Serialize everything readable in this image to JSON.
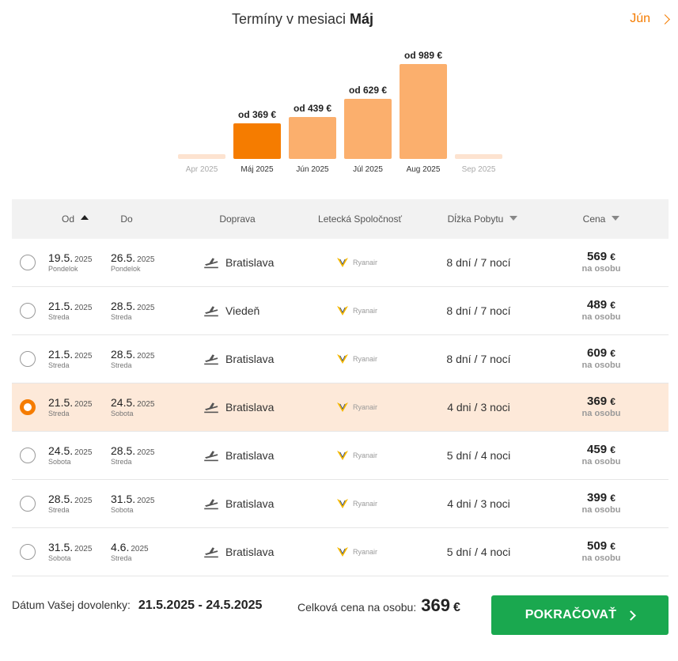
{
  "header": {
    "title_prefix": "Termíny v mesiaci",
    "title_month": "Máj",
    "next_month_label": "Jún"
  },
  "colors": {
    "accent": "#f57c00",
    "bar_selected": "#f57c00",
    "bar_other": "#fbaf6d",
    "bar_empty": "#fde3d0",
    "selected_row": "#fde9d9",
    "continue_button": "#1aa84f"
  },
  "chart_data": {
    "type": "bar",
    "categories": [
      "Apr 2025",
      "Máj 2025",
      "Jún 2025",
      "Júl 2025",
      "Aug 2025",
      "Sep 2025"
    ],
    "values": [
      null,
      369,
      439,
      629,
      989,
      null
    ],
    "labels": [
      "",
      "od 369 €",
      "od 439 €",
      "od 629 €",
      "od 989 €",
      ""
    ],
    "selected_category": "Máj 2025",
    "title": "",
    "xlabel": "",
    "ylabel": ""
  },
  "table": {
    "headers": {
      "from": "Od",
      "to": "Do",
      "transport": "Doprava",
      "airline": "Letecká Spoločnosť",
      "stay": "Dĺžka Pobytu",
      "price": "Cena"
    },
    "rows": [
      {
        "from_d": "19.5.",
        "from_y": "2025",
        "from_w": "Pondelok",
        "to_d": "26.5.",
        "to_y": "2025",
        "to_w": "Pondelok",
        "transport": "Bratislava",
        "airline": "Ryanair",
        "days": "8 dní",
        "nights": "7 nocí",
        "price": "569",
        "cur": "€",
        "per": "na osobu",
        "selected": false
      },
      {
        "from_d": "21.5.",
        "from_y": "2025",
        "from_w": "Streda",
        "to_d": "28.5.",
        "to_y": "2025",
        "to_w": "Streda",
        "transport": "Viedeň",
        "airline": "Ryanair",
        "days": "8 dní",
        "nights": "7 nocí",
        "price": "489",
        "cur": "€",
        "per": "na osobu",
        "selected": false
      },
      {
        "from_d": "21.5.",
        "from_y": "2025",
        "from_w": "Streda",
        "to_d": "28.5.",
        "to_y": "2025",
        "to_w": "Streda",
        "transport": "Bratislava",
        "airline": "Ryanair",
        "days": "8 dní",
        "nights": "7 nocí",
        "price": "609",
        "cur": "€",
        "per": "na osobu",
        "selected": false
      },
      {
        "from_d": "21.5.",
        "from_y": "2025",
        "from_w": "Streda",
        "to_d": "24.5.",
        "to_y": "2025",
        "to_w": "Sobota",
        "transport": "Bratislava",
        "airline": "Ryanair",
        "days": "4 dni",
        "nights": "3 noci",
        "price": "369",
        "cur": "€",
        "per": "na osobu",
        "selected": true
      },
      {
        "from_d": "24.5.",
        "from_y": "2025",
        "from_w": "Sobota",
        "to_d": "28.5.",
        "to_y": "2025",
        "to_w": "Streda",
        "transport": "Bratislava",
        "airline": "Ryanair",
        "days": "5 dní",
        "nights": "4 noci",
        "price": "459",
        "cur": "€",
        "per": "na osobu",
        "selected": false
      },
      {
        "from_d": "28.5.",
        "from_y": "2025",
        "from_w": "Streda",
        "to_d": "31.5.",
        "to_y": "2025",
        "to_w": "Sobota",
        "transport": "Bratislava",
        "airline": "Ryanair",
        "days": "4 dni",
        "nights": "3 noci",
        "price": "399",
        "cur": "€",
        "per": "na osobu",
        "selected": false
      },
      {
        "from_d": "31.5.",
        "from_y": "2025",
        "from_w": "Sobota",
        "to_d": "4.6.",
        "to_y": "2025",
        "to_w": "Streda",
        "transport": "Bratislava",
        "airline": "Ryanair",
        "days": "5 dní",
        "nights": "4 noci",
        "price": "509",
        "cur": "€",
        "per": "na osobu",
        "selected": false
      }
    ]
  },
  "footer": {
    "date_label": "Dátum Vašej dovolenky:",
    "date_value": "21.5.2025 - 24.5.2025",
    "total_label": "Celková cena na osobu:",
    "total_value": "369",
    "total_currency": "€",
    "continue_label": "POKRAČOVAŤ"
  }
}
